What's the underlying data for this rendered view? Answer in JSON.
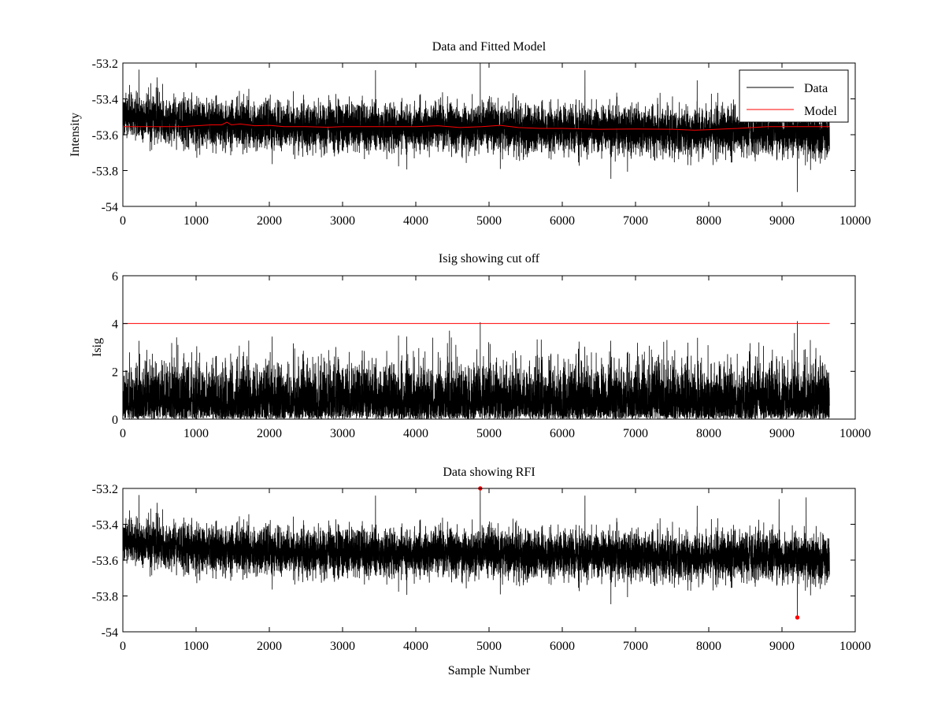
{
  "chart_data": [
    {
      "type": "line",
      "title": "Data and Fitted Model",
      "xlabel": "",
      "ylabel": "Intensity",
      "xlim": [
        0,
        10000
      ],
      "ylim": [
        -54,
        -53.2
      ],
      "xticks": [
        0,
        1000,
        2000,
        3000,
        4000,
        5000,
        6000,
        7000,
        8000,
        9000,
        10000
      ],
      "xtick_labels": [
        "0",
        "1000",
        "2000",
        "3000",
        "4000",
        "5000",
        "6000",
        "7000",
        "8000",
        "9000",
        "10000"
      ],
      "yticks": [
        -54,
        -53.8,
        -53.6,
        -53.4,
        -53.2
      ],
      "ytick_labels": [
        "-54",
        "-53.8",
        "-53.6",
        "-53.4",
        "-53.2"
      ],
      "legend": {
        "position": "top-right",
        "entries": [
          "Data",
          "Model"
        ]
      },
      "series": [
        {
          "name": "Data",
          "color": "#000000",
          "kind": "noise",
          "n_samples": 9650,
          "mean_points": [
            [
              0,
              -53.49
            ],
            [
              500,
              -53.52
            ],
            [
              1000,
              -53.54
            ],
            [
              2000,
              -53.55
            ],
            [
              3000,
              -53.56
            ],
            [
              4000,
              -53.56
            ],
            [
              5000,
              -53.56
            ],
            [
              6000,
              -53.57
            ],
            [
              7000,
              -53.58
            ],
            [
              8000,
              -53.58
            ],
            [
              9000,
              -53.58
            ],
            [
              9650,
              -53.6
            ]
          ],
          "noise_amplitude": 0.065,
          "notable_points": [
            [
              4880,
              -53.2
            ],
            [
              9210,
              -53.92
            ],
            [
              3450,
              -53.24
            ],
            [
              6310,
              -53.24
            ],
            [
              8960,
              -53.26
            ],
            [
              9330,
              -53.25
            ]
          ]
        },
        {
          "name": "Model",
          "color": "#ff0000",
          "kind": "line",
          "x": [
            0,
            200,
            400,
            600,
            800,
            1000,
            1200,
            1350,
            1420,
            1480,
            1600,
            1800,
            2000,
            2200,
            2500,
            2800,
            3000,
            3300,
            3600,
            4000,
            4300,
            4600,
            4900,
            5150,
            5400,
            5700,
            6000,
            6500,
            7000,
            7500,
            7800,
            8000,
            8200,
            8400,
            8600,
            8800,
            9000,
            9300,
            9650
          ],
          "y": [
            -53.555,
            -53.555,
            -53.555,
            -53.555,
            -53.555,
            -53.55,
            -53.545,
            -53.545,
            -53.53,
            -53.545,
            -53.54,
            -53.55,
            -53.548,
            -53.555,
            -53.555,
            -53.558,
            -53.555,
            -53.555,
            -53.555,
            -53.555,
            -53.55,
            -53.56,
            -53.555,
            -53.548,
            -53.56,
            -53.565,
            -53.565,
            -53.57,
            -53.568,
            -53.57,
            -53.575,
            -53.572,
            -53.568,
            -53.565,
            -53.56,
            -53.555,
            -53.555,
            -53.555,
            -53.555
          ]
        }
      ]
    },
    {
      "type": "line",
      "title": "Isig showing cut off",
      "xlabel": "",
      "ylabel": "Isig",
      "xlim": [
        0,
        10000
      ],
      "ylim": [
        0,
        6
      ],
      "xticks": [
        0,
        1000,
        2000,
        3000,
        4000,
        5000,
        6000,
        7000,
        8000,
        9000,
        10000
      ],
      "xtick_labels": [
        "0",
        "1000",
        "2000",
        "3000",
        "4000",
        "5000",
        "6000",
        "7000",
        "8000",
        "9000",
        "10000"
      ],
      "yticks": [
        0,
        2,
        4,
        6
      ],
      "ytick_labels": [
        "0",
        "2",
        "4",
        "6"
      ],
      "series": [
        {
          "name": "Isig",
          "color": "#000000",
          "kind": "abs-noise",
          "n_samples": 9650,
          "typical_max": 3.5,
          "notable_points": [
            [
              4880,
              4.05
            ],
            [
              9210,
              4.1
            ],
            [
              4460,
              3.7
            ],
            [
              9170,
              3.6
            ]
          ]
        },
        {
          "name": "Cut off",
          "color": "#ff0000",
          "kind": "line",
          "x": [
            0,
            9650
          ],
          "y": [
            4,
            4
          ]
        }
      ]
    },
    {
      "type": "line",
      "title": "Data showing RFI",
      "xlabel": "Sample Number",
      "ylabel": "",
      "xlim": [
        0,
        10000
      ],
      "ylim": [
        -54,
        -53.2
      ],
      "xticks": [
        0,
        1000,
        2000,
        3000,
        4000,
        5000,
        6000,
        7000,
        8000,
        9000,
        10000
      ],
      "xtick_labels": [
        "0",
        "1000",
        "2000",
        "3000",
        "4000",
        "5000",
        "6000",
        "7000",
        "8000",
        "9000",
        "10000"
      ],
      "yticks": [
        -54,
        -53.8,
        -53.6,
        -53.4,
        -53.2
      ],
      "ytick_labels": [
        "-54",
        "-53.8",
        "-53.6",
        "-53.4",
        "-53.2"
      ],
      "series": [
        {
          "name": "Data",
          "color": "#000000",
          "kind": "noise",
          "n_samples": 9650,
          "mean_points": [
            [
              0,
              -53.49
            ],
            [
              500,
              -53.52
            ],
            [
              1000,
              -53.54
            ],
            [
              2000,
              -53.55
            ],
            [
              3000,
              -53.56
            ],
            [
              4000,
              -53.56
            ],
            [
              5000,
              -53.56
            ],
            [
              6000,
              -53.57
            ],
            [
              7000,
              -53.58
            ],
            [
              8000,
              -53.58
            ],
            [
              9000,
              -53.58
            ],
            [
              9650,
              -53.6
            ]
          ],
          "noise_amplitude": 0.065,
          "notable_points": [
            [
              4880,
              -53.2
            ],
            [
              9210,
              -53.92
            ],
            [
              3450,
              -53.24
            ],
            [
              6310,
              -53.24
            ],
            [
              8960,
              -53.26
            ],
            [
              9330,
              -53.25
            ]
          ]
        },
        {
          "name": "RFI",
          "color": "#ff0000",
          "kind": "markers",
          "x": [
            4880,
            9210
          ],
          "y": [
            -53.2,
            -53.92
          ]
        }
      ]
    }
  ]
}
